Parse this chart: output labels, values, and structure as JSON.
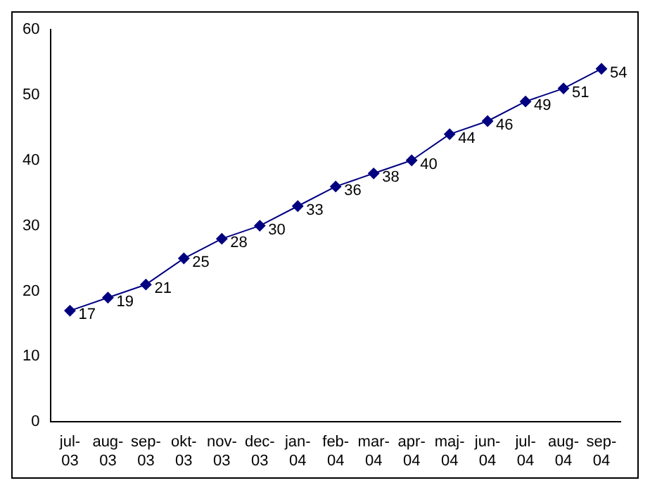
{
  "chart_data": {
    "type": "line",
    "categories": [
      "jul-03",
      "aug-03",
      "sep-03",
      "okt-03",
      "nov-03",
      "dec-03",
      "jan-04",
      "feb-04",
      "mar-04",
      "apr-04",
      "maj-04",
      "jun-04",
      "jul-04",
      "aug-04",
      "sep-04"
    ],
    "series": [
      {
        "color": "#000080",
        "values": [
          17,
          19,
          21,
          25,
          28,
          30,
          33,
          36,
          38,
          40,
          44,
          46,
          49,
          51,
          54
        ]
      }
    ],
    "ylim": [
      0,
      60
    ],
    "yticks": [
      0,
      10,
      20,
      30,
      40,
      50,
      60
    ],
    "grid": false,
    "legend": false,
    "marker": "diamond",
    "line_style": "solid",
    "data_labels": true
  }
}
